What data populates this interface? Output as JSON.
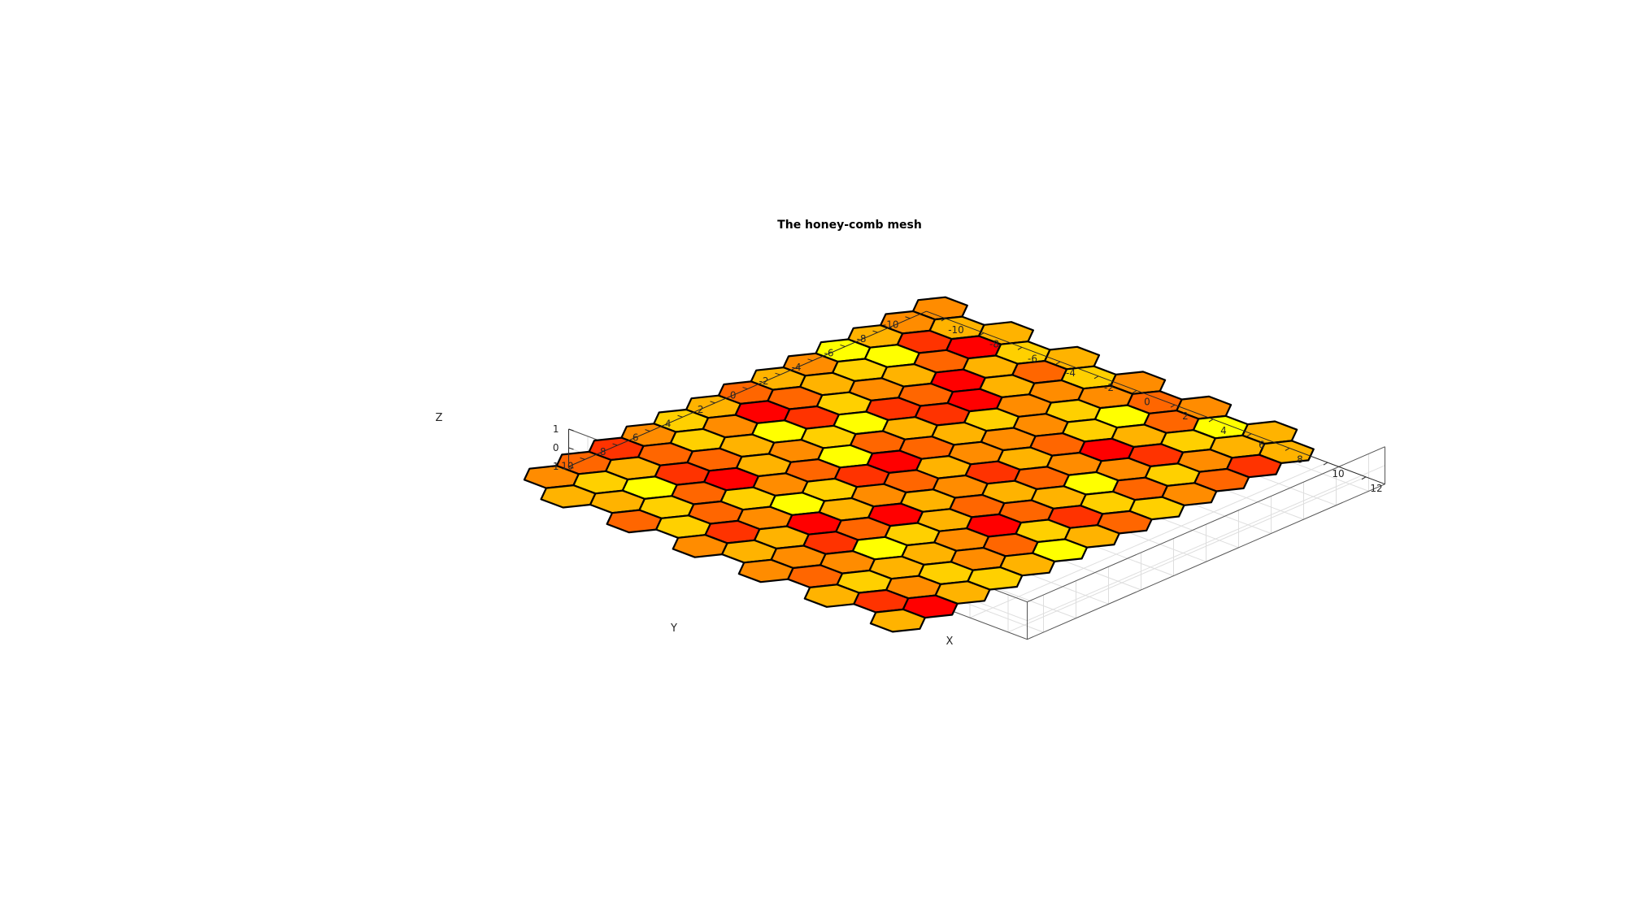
{
  "chart_data": {
    "type": "surface3d",
    "title": "The honey-comb mesh",
    "xlabel": "X",
    "ylabel": "Y",
    "zlabel": "Z",
    "xlim": [
      -11,
      13
    ],
    "ylim": [
      -11,
      11
    ],
    "zlim": [
      -1,
      1
    ],
    "xticks": [
      "-10",
      "-8",
      "-6",
      "-4",
      "-2",
      "0",
      "2",
      "4",
      "6",
      "8",
      "10",
      "12"
    ],
    "yticks": [
      "-10",
      "-8",
      "-6",
      "-4",
      "-2",
      "0",
      "2",
      "4",
      "6",
      "8",
      "10"
    ],
    "zticks": [
      "-1",
      "0",
      "1"
    ],
    "grid": true,
    "colormap": [
      "#ff0000",
      "#ff3300",
      "#ff6600",
      "#ff8c00",
      "#ffb300",
      "#ffd000",
      "#ffff00"
    ],
    "hex_radius": 1.15,
    "hex_rows": 13,
    "hex_cols": 12,
    "cell_colors": [
      [
        3,
        4,
        4,
        5,
        4,
        5,
        3,
        2,
        3,
        6,
        4,
        4
      ],
      [
        3,
        1,
        0,
        4,
        2,
        3,
        3,
        6,
        2,
        5,
        4,
        1
      ],
      [
        4,
        6,
        2,
        0,
        4,
        3,
        5,
        5,
        4,
        1,
        3,
        2
      ],
      [
        6,
        5,
        4,
        2,
        0,
        5,
        3,
        2,
        0,
        3,
        5,
        3
      ],
      [
        3,
        4,
        3,
        1,
        1,
        4,
        3,
        4,
        3,
        6,
        2,
        5
      ],
      [
        4,
        2,
        5,
        6,
        4,
        2,
        3,
        1,
        2,
        4,
        5,
        2
      ],
      [
        2,
        0,
        1,
        5,
        2,
        0,
        4,
        3,
        4,
        2,
        1,
        4
      ],
      [
        4,
        3,
        6,
        3,
        6,
        1,
        2,
        4,
        2,
        0,
        5,
        6
      ],
      [
        5,
        5,
        4,
        4,
        2,
        5,
        3,
        0,
        4,
        3,
        2,
        4
      ],
      [
        3,
        2,
        2,
        0,
        3,
        6,
        4,
        2,
        5,
        4,
        3,
        5
      ],
      [
        1,
        4,
        1,
        2,
        5,
        3,
        0,
        1,
        6,
        4,
        5,
        4
      ],
      [
        2,
        5,
        6,
        5,
        2,
        1,
        4,
        3,
        3,
        5,
        3,
        0
      ],
      [
        3,
        4,
        4,
        2,
        5,
        3,
        4,
        3,
        2,
        4,
        1,
        4
      ]
    ]
  }
}
